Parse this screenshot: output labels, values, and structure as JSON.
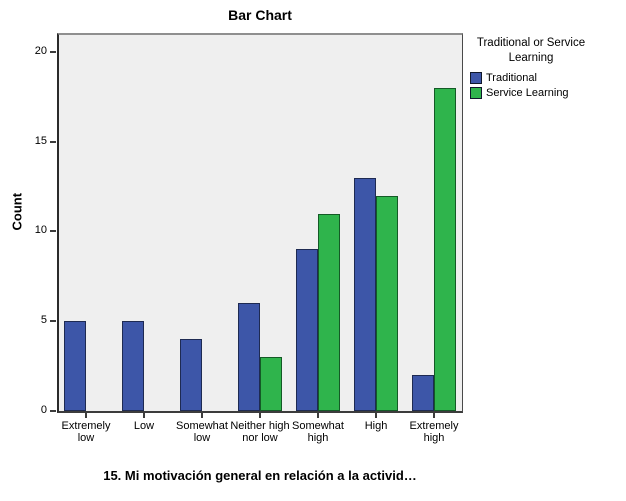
{
  "chart_data": {
    "type": "bar",
    "title": "Bar Chart",
    "ylabel": "Count",
    "xlabel": "15. Mi motivación general en relación a la activid…",
    "categories": [
      "Extremely low",
      "Low",
      "Somewhat low",
      "Neither high nor low",
      "Somewhat high",
      "High",
      "Extremely high"
    ],
    "series": [
      {
        "name": "Traditional",
        "color": "#3d56a8",
        "border": "#1e2a52",
        "values": [
          5,
          5,
          4,
          6,
          9,
          13,
          2
        ]
      },
      {
        "name": "Service Learning",
        "color": "#2fb44c",
        "border": "#145a26",
        "values": [
          0,
          0,
          0,
          3,
          11,
          12,
          18
        ]
      }
    ],
    "ylim": [
      0,
      21
    ],
    "yticks": [
      0,
      5,
      10,
      15,
      20
    ],
    "legend_title": "Traditional or Service Learning",
    "legend_position": "right",
    "grid": false,
    "plot_background": "#efefef"
  }
}
